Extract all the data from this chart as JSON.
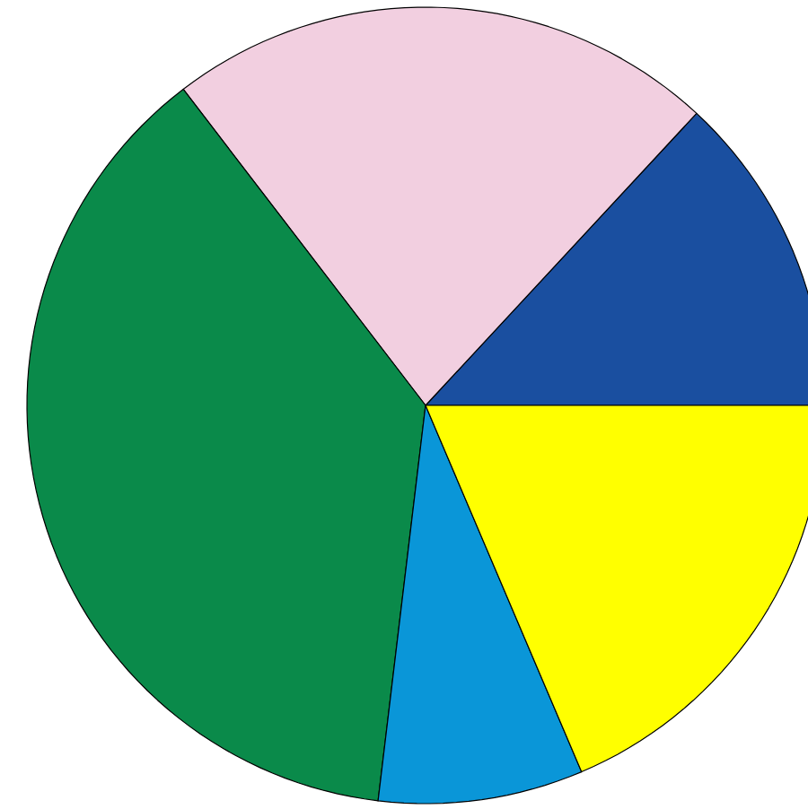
{
  "chart_data": {
    "type": "pie",
    "categories": [
      null,
      null,
      null,
      null,
      null
    ],
    "values": [
      13.1,
      22.3,
      37.7,
      8.3,
      18.6
    ],
    "colors": [
      "#1a4fa0",
      "#f2cfe0",
      "#0a8a4a",
      "#0a96d8",
      "#ffff00"
    ]
  }
}
